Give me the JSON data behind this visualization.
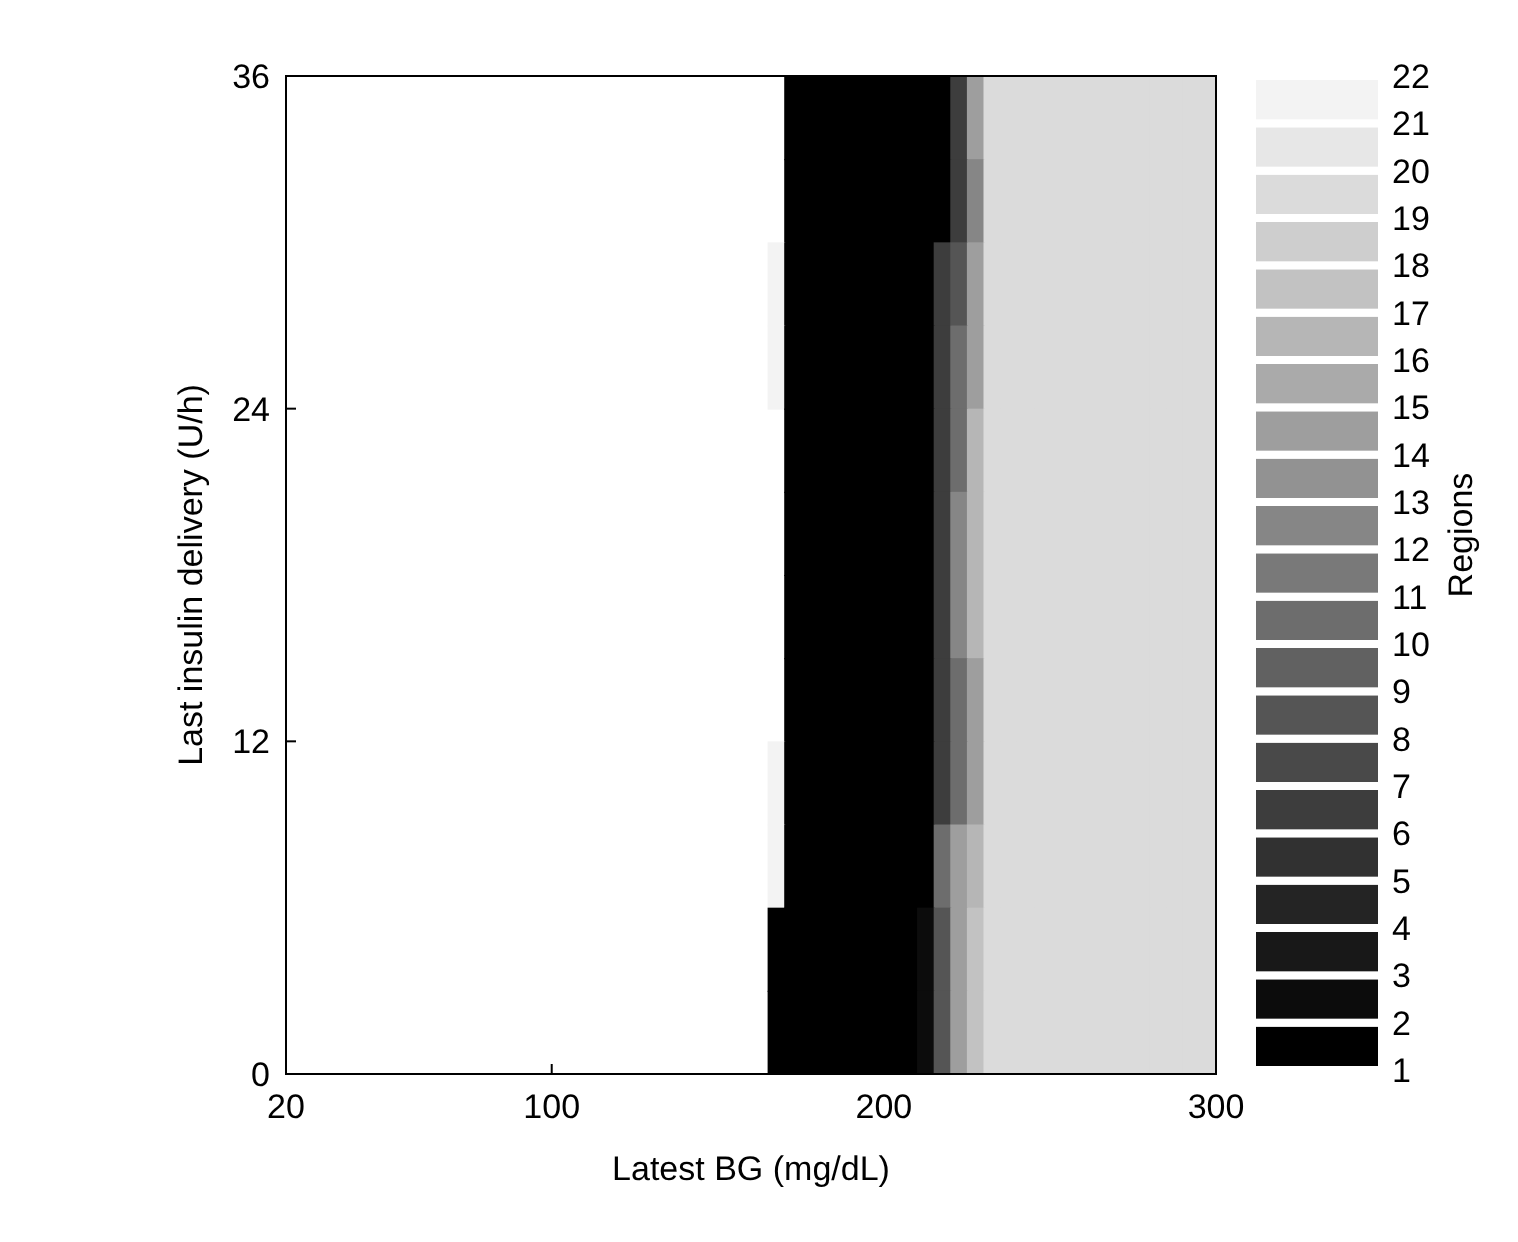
{
  "chart_data": {
    "type": "heatmap",
    "xlabel": "Latest BG (mg/dL)",
    "ylabel": "Last insulin delivery (U/h)",
    "clabel": "Regions",
    "x": [
      167.5,
      172.5,
      177.5,
      182.5,
      187.5,
      192.5,
      197.5,
      202.5,
      207.5,
      212.5,
      217.5,
      222.5,
      227.5,
      232.5,
      237.5,
      242.5,
      247.5,
      252.5,
      257.5,
      262.5,
      267.5,
      272.5,
      277.5,
      282.5,
      287.5,
      292.5,
      297.5
    ],
    "y": [
      34.5,
      31.5,
      28.5,
      25.5,
      22.5,
      19.5,
      16.5,
      13.5,
      10.5,
      7.5,
      4.5,
      1.5
    ],
    "xlim": [
      20,
      300
    ],
    "xticks": [
      20,
      100,
      200,
      300
    ],
    "ylim": [
      0,
      36
    ],
    "yticks": [
      0,
      12,
      24,
      36
    ],
    "clim": [
      1,
      22
    ],
    "cticks": [
      1,
      2,
      3,
      4,
      5,
      6,
      7,
      8,
      9,
      10,
      11,
      12,
      13,
      14,
      15,
      16,
      17,
      18,
      19,
      20,
      21,
      22
    ],
    "cells": [
      [
        null,
        1,
        1,
        1,
        1,
        1,
        1,
        1,
        1,
        1,
        1,
        6,
        14,
        19,
        19,
        19,
        19,
        19,
        19,
        19,
        19,
        19,
        19,
        19,
        19,
        19,
        19
      ],
      [
        null,
        1,
        1,
        1,
        1,
        1,
        1,
        1,
        1,
        1,
        1,
        6,
        12,
        19,
        19,
        19,
        19,
        19,
        19,
        19,
        19,
        19,
        19,
        19,
        19,
        19,
        19
      ],
      [
        21,
        1,
        1,
        1,
        1,
        1,
        1,
        1,
        1,
        1,
        6,
        8,
        14,
        19,
        19,
        19,
        19,
        19,
        19,
        19,
        19,
        19,
        19,
        19,
        19,
        19,
        19
      ],
      [
        21,
        1,
        1,
        1,
        1,
        1,
        1,
        1,
        1,
        1,
        6,
        10,
        14,
        19,
        19,
        19,
        19,
        19,
        19,
        19,
        19,
        19,
        19,
        19,
        19,
        19,
        19
      ],
      [
        null,
        1,
        1,
        1,
        1,
        1,
        1,
        1,
        1,
        1,
        6,
        10,
        16,
        19,
        19,
        19,
        19,
        19,
        19,
        19,
        19,
        19,
        19,
        19,
        19,
        19,
        19
      ],
      [
        null,
        1,
        1,
        1,
        1,
        1,
        1,
        1,
        1,
        1,
        6,
        12,
        16,
        19,
        19,
        19,
        19,
        19,
        19,
        19,
        19,
        19,
        19,
        19,
        19,
        19,
        19
      ],
      [
        null,
        1,
        1,
        1,
        1,
        1,
        1,
        1,
        1,
        1,
        6,
        12,
        16,
        19,
        19,
        19,
        19,
        19,
        19,
        19,
        19,
        19,
        19,
        19,
        19,
        19,
        19
      ],
      [
        null,
        1,
        1,
        1,
        1,
        1,
        1,
        1,
        1,
        1,
        6,
        10,
        14,
        19,
        19,
        19,
        19,
        19,
        19,
        19,
        19,
        19,
        19,
        19,
        19,
        19,
        19
      ],
      [
        21,
        1,
        1,
        1,
        1,
        1,
        1,
        1,
        1,
        1,
        6,
        10,
        14,
        19,
        19,
        19,
        19,
        19,
        19,
        19,
        19,
        19,
        19,
        19,
        19,
        19,
        19
      ],
      [
        21,
        1,
        1,
        1,
        1,
        1,
        1,
        1,
        1,
        1,
        10,
        14,
        16,
        19,
        19,
        19,
        19,
        19,
        19,
        19,
        19,
        19,
        19,
        19,
        19,
        19,
        19
      ],
      [
        1,
        1,
        1,
        1,
        1,
        1,
        1,
        1,
        1,
        2,
        8,
        14,
        17,
        19,
        19,
        19,
        19,
        19,
        19,
        19,
        19,
        19,
        19,
        19,
        19,
        19,
        19
      ],
      [
        1,
        1,
        1,
        1,
        1,
        1,
        1,
        1,
        1,
        2,
        8,
        14,
        17,
        19,
        19,
        19,
        19,
        19,
        19,
        19,
        19,
        19,
        19,
        19,
        19,
        19,
        19
      ]
    ]
  }
}
